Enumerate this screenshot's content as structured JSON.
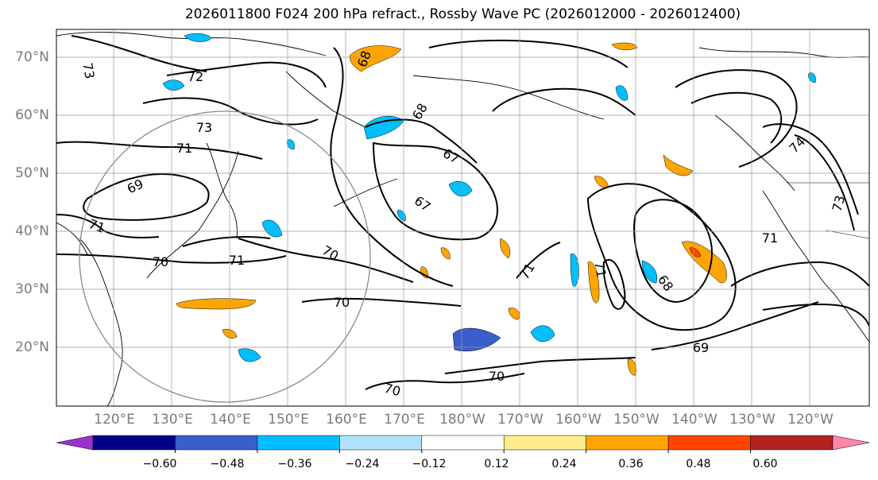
{
  "title": "2026011800 F024 200 hPa refract., Rossby Wave PC (2026012000 - 2026012400)",
  "lat_labels": [
    "70°N",
    "60°N",
    "50°N",
    "40°N",
    "30°N",
    "20°N"
  ],
  "lon_labels": [
    "120°E",
    "130°E",
    "140°E",
    "150°E",
    "160°E",
    "170°E",
    "180°W",
    "170°W",
    "160°W",
    "150°W",
    "140°W",
    "130°W",
    "120°W"
  ],
  "contour_labels": [
    "73",
    "72",
    "73",
    "71",
    "69",
    "71",
    "70",
    "71",
    "70",
    "70",
    "68",
    "68",
    "67",
    "67",
    "71",
    "71",
    "68",
    "69",
    "70",
    "70",
    "71",
    "74",
    "73"
  ],
  "colorbar": {
    "tick_labels": [
      "−0.60",
      "−0.48",
      "−0.36",
      "−0.24",
      "−0.12",
      "0.12",
      "0.24",
      "0.36",
      "0.48",
      "0.60"
    ],
    "colors": [
      "#9932cc",
      "#00008b",
      "#3a5fcd",
      "#00bfff",
      "#b0e2ff",
      "#ffffff",
      "#ffec8b",
      "#ffa500",
      "#ff4500",
      "#b22222",
      "#ff88aa"
    ]
  }
}
